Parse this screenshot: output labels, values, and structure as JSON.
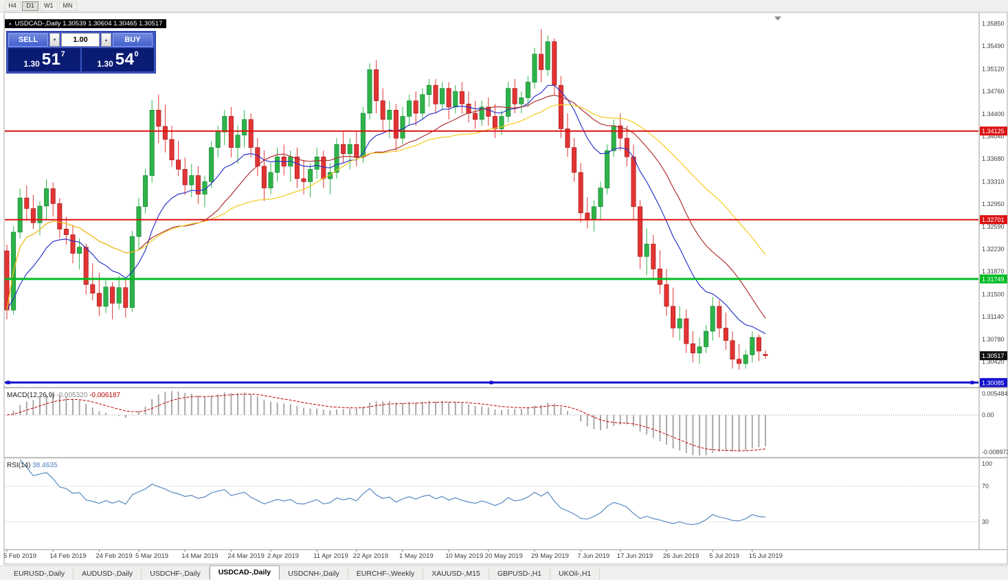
{
  "toolbar": {
    "timeframes": [
      {
        "label": "H4",
        "active": false
      },
      {
        "label": "D1",
        "active": true
      },
      {
        "label": "W1",
        "active": false
      },
      {
        "label": "MN",
        "active": false
      }
    ]
  },
  "chart_header": {
    "symbol_line": "USDCAD-,Daily  1.30539 1.30604 1.30465 1.30517"
  },
  "icons": {
    "one_click_toggle": "▴",
    "volume_up": "▴",
    "volume_down": "▾",
    "shift_marker": "▼"
  },
  "trade_panel": {
    "sell_label": "SELL",
    "buy_label": "BUY",
    "volume": "1.00",
    "sell_price_big": "1.30",
    "sell_price_pips": "51",
    "sell_price_sup": "7",
    "buy_price_big": "1.30",
    "buy_price_pips": "54",
    "buy_price_sup": "0"
  },
  "tabs": [
    {
      "label": "EURUSD-,Daily",
      "active": false
    },
    {
      "label": "AUDUSD-,Daily",
      "active": false
    },
    {
      "label": "USDCHF-,Daily",
      "active": false
    },
    {
      "label": "USDCAD-,Daily",
      "active": true
    },
    {
      "label": "USDCNH-,Daily",
      "active": false
    },
    {
      "label": "EURCHF-,Weekly",
      "active": false
    },
    {
      "label": "XAUUSD-,M15",
      "active": false
    },
    {
      "label": "GBPUSD-,H1",
      "active": false
    },
    {
      "label": "UKOil-,H1",
      "active": false
    }
  ],
  "chart_data": {
    "type": "candlestick",
    "symbol": "USDCAD-",
    "timeframe": "Daily",
    "ohlc_title": {
      "open": "1.30539",
      "high": "1.30604",
      "low": "1.30465",
      "close": "1.30517"
    },
    "price_range": [
      1.3005,
      1.3592
    ],
    "colors": {
      "up": "#2eb34a",
      "up_border": "#0e7a2a",
      "down": "#e23434",
      "down_border": "#9c1212",
      "ma_fast": "#2a35c8",
      "ma_medium": "#b03030",
      "ma_slow": "#f2cc18",
      "macd_hist": "#a9a9a9",
      "macd_signal": "#c00000",
      "rsi_line": "#4a7ebb"
    },
    "y_ticks": [
      "1.35850",
      "1.35490",
      "1.35120",
      "1.34760",
      "1.34400",
      "1.34040",
      "1.33680",
      "1.33310",
      "1.32950",
      "1.32590",
      "1.32230",
      "1.31870",
      "1.31500",
      "1.31140",
      "1.30780",
      "1.30420"
    ],
    "current_price": {
      "price": 1.30517,
      "label": "1.30517",
      "color": "#111111"
    },
    "hlines": [
      {
        "price": 1.34125,
        "label": "1.34125",
        "color": "#dd1111",
        "width": 2,
        "selected": false
      },
      {
        "price": 1.32701,
        "label": "1.32701",
        "color": "#dd1111",
        "width": 2,
        "selected": false
      },
      {
        "price": 1.31749,
        "label": "1.31749",
        "color": "#00bb22",
        "width": 3,
        "selected": false
      },
      {
        "price": 1.30085,
        "label": "1.30085",
        "color": "#1111cc",
        "width": 3,
        "selected": true
      }
    ],
    "ma_lines": [
      {
        "name": "fast",
        "method": "ema",
        "period": 13,
        "color": "#2a35c8"
      },
      {
        "name": "medium",
        "method": "sma",
        "period": 21,
        "color": "#b03030"
      },
      {
        "name": "slow",
        "method": "sma",
        "period": 34,
        "color": "#f2cc18"
      }
    ],
    "macd": {
      "label": "MACD(12,26,9)",
      "value": "-0.005320",
      "signal_value": "-0.006187",
      "params": [
        12,
        26,
        9
      ],
      "range": [
        -0.008973,
        0.005484
      ],
      "axis_labels": [
        "0.005484",
        "0.00",
        "-0.008973"
      ]
    },
    "rsi": {
      "label": "RSI(14)",
      "value": "38.4635",
      "period": 14,
      "range": [
        0,
        100
      ],
      "levels": [
        70,
        30
      ],
      "axis_labels": [
        "100",
        "70",
        "30"
      ]
    },
    "date_ticks": [
      {
        "t": "5 Feb 2019",
        "i": 0
      },
      {
        "t": "14 Feb 2019",
        "i": 7
      },
      {
        "t": "24 Feb 2019",
        "i": 14
      },
      {
        "t": "5 Mar 2019",
        "i": 20
      },
      {
        "t": "14 Mar 2019",
        "i": 27
      },
      {
        "t": "24 Mar 2019",
        "i": 34
      },
      {
        "t": "2 Apr 2019",
        "i": 40
      },
      {
        "t": "11 Apr 2019",
        "i": 47
      },
      {
        "t": "22 Apr 2019",
        "i": 53
      },
      {
        "t": "1 May 2019",
        "i": 60
      },
      {
        "t": "10 May 2019",
        "i": 67
      },
      {
        "t": "20 May 2019",
        "i": 73
      },
      {
        "t": "29 May 2019",
        "i": 80
      },
      {
        "t": "7 Jun 2019",
        "i": 87
      },
      {
        "t": "17 Jun 2019",
        "i": 93
      },
      {
        "t": "26 Jun 2019",
        "i": 100
      },
      {
        "t": "5 Jul 2019",
        "i": 107
      },
      {
        "t": "15 Jul 2019",
        "i": 113
      }
    ],
    "candles": [
      [
        "2019-02-05",
        1.322,
        1.323,
        1.311,
        1.3125
      ],
      [
        "2019-02-06",
        1.3125,
        1.326,
        1.3118,
        1.325
      ],
      [
        "2019-02-07",
        1.325,
        1.332,
        1.324,
        1.3305
      ],
      [
        "2019-02-08",
        1.3305,
        1.3325,
        1.3268,
        1.3288
      ],
      [
        "2019-02-11",
        1.3288,
        1.331,
        1.3255,
        1.3265
      ],
      [
        "2019-02-12",
        1.3265,
        1.33,
        1.3245,
        1.3292
      ],
      [
        "2019-02-13",
        1.3292,
        1.3335,
        1.327,
        1.332
      ],
      [
        "2019-02-14",
        1.332,
        1.333,
        1.3275,
        1.3296
      ],
      [
        "2019-02-15",
        1.3296,
        1.3305,
        1.324,
        1.3255
      ],
      [
        "2019-02-18",
        1.3255,
        1.3275,
        1.323,
        1.3246
      ],
      [
        "2019-02-19",
        1.3246,
        1.3262,
        1.32,
        1.3216
      ],
      [
        "2019-02-20",
        1.3216,
        1.324,
        1.319,
        1.3226
      ],
      [
        "2019-02-21",
        1.3226,
        1.3232,
        1.315,
        1.3166
      ],
      [
        "2019-02-22",
        1.3166,
        1.32,
        1.314,
        1.3152
      ],
      [
        "2019-02-25",
        1.3152,
        1.3185,
        1.3115,
        1.3131
      ],
      [
        "2019-02-26",
        1.3131,
        1.3176,
        1.312,
        1.3162
      ],
      [
        "2019-02-27",
        1.3162,
        1.317,
        1.311,
        1.3136
      ],
      [
        "2019-02-28",
        1.3136,
        1.318,
        1.3126,
        1.3161
      ],
      [
        "2019-03-01",
        1.3161,
        1.3176,
        1.3113,
        1.3129
      ],
      [
        "2019-03-04",
        1.3129,
        1.3252,
        1.3122,
        1.3243
      ],
      [
        "2019-03-05",
        1.3243,
        1.3305,
        1.3222,
        1.3291
      ],
      [
        "2019-03-06",
        1.3291,
        1.3352,
        1.328,
        1.3341
      ],
      [
        "2019-03-07",
        1.3341,
        1.3462,
        1.333,
        1.3446
      ],
      [
        "2019-03-08",
        1.3446,
        1.3471,
        1.3393,
        1.342
      ],
      [
        "2019-03-11",
        1.342,
        1.3455,
        1.3378,
        1.3399
      ],
      [
        "2019-03-12",
        1.3399,
        1.3421,
        1.3355,
        1.3366
      ],
      [
        "2019-03-13",
        1.3366,
        1.3396,
        1.334,
        1.3351
      ],
      [
        "2019-03-14",
        1.3351,
        1.337,
        1.331,
        1.3326
      ],
      [
        "2019-03-15",
        1.3326,
        1.336,
        1.3306,
        1.3341
      ],
      [
        "2019-03-18",
        1.3341,
        1.3356,
        1.3295,
        1.3311
      ],
      [
        "2019-03-19",
        1.3311,
        1.3341,
        1.329,
        1.3331
      ],
      [
        "2019-03-20",
        1.3331,
        1.3396,
        1.3321,
        1.3386
      ],
      [
        "2019-03-21",
        1.3386,
        1.3421,
        1.337,
        1.3411
      ],
      [
        "2019-03-22",
        1.3411,
        1.3446,
        1.339,
        1.3436
      ],
      [
        "2019-03-25",
        1.3436,
        1.3451,
        1.337,
        1.3386
      ],
      [
        "2019-03-26",
        1.3386,
        1.3421,
        1.336,
        1.3406
      ],
      [
        "2019-03-27",
        1.3406,
        1.3446,
        1.3386,
        1.3431
      ],
      [
        "2019-03-28",
        1.3431,
        1.3441,
        1.337,
        1.3386
      ],
      [
        "2019-03-29",
        1.3386,
        1.3401,
        1.334,
        1.3356
      ],
      [
        "2019-04-01",
        1.3356,
        1.3381,
        1.33,
        1.3321
      ],
      [
        "2019-04-02",
        1.3321,
        1.3361,
        1.3311,
        1.3346
      ],
      [
        "2019-04-03",
        1.3346,
        1.3386,
        1.3331,
        1.3371
      ],
      [
        "2019-04-04",
        1.3371,
        1.3391,
        1.3341,
        1.3356
      ],
      [
        "2019-04-05",
        1.3356,
        1.3381,
        1.3331,
        1.3371
      ],
      [
        "2019-04-08",
        1.3371,
        1.3386,
        1.3321,
        1.3336
      ],
      [
        "2019-04-09",
        1.3336,
        1.3366,
        1.3311,
        1.3331
      ],
      [
        "2019-04-10",
        1.3331,
        1.3361,
        1.3306,
        1.3351
      ],
      [
        "2019-04-11",
        1.3351,
        1.3386,
        1.3336,
        1.3371
      ],
      [
        "2019-04-12",
        1.3371,
        1.3381,
        1.3321,
        1.3336
      ],
      [
        "2019-04-15",
        1.3336,
        1.3361,
        1.3311,
        1.3346
      ],
      [
        "2019-04-16",
        1.3346,
        1.3401,
        1.3336,
        1.3391
      ],
      [
        "2019-04-17",
        1.3391,
        1.3411,
        1.3361,
        1.3376
      ],
      [
        "2019-04-18",
        1.3376,
        1.3401,
        1.3351,
        1.3391
      ],
      [
        "2019-04-22",
        1.3391,
        1.3411,
        1.3356,
        1.3371
      ],
      [
        "2019-04-23",
        1.3371,
        1.3451,
        1.3361,
        1.3441
      ],
      [
        "2019-04-24",
        1.3441,
        1.3521,
        1.3431,
        1.3511
      ],
      [
        "2019-04-25",
        1.3511,
        1.3526,
        1.3441,
        1.3461
      ],
      [
        "2019-04-26",
        1.3461,
        1.3481,
        1.3411,
        1.3431
      ],
      [
        "2019-04-29",
        1.3431,
        1.3461,
        1.3401,
        1.3446
      ],
      [
        "2019-04-30",
        1.3446,
        1.3456,
        1.3381,
        1.3401
      ],
      [
        "2019-05-01",
        1.3401,
        1.3451,
        1.3391,
        1.3436
      ],
      [
        "2019-05-02",
        1.3436,
        1.3471,
        1.3421,
        1.3461
      ],
      [
        "2019-05-03",
        1.3461,
        1.3476,
        1.3421,
        1.3441
      ],
      [
        "2019-05-06",
        1.3441,
        1.3481,
        1.3431,
        1.3471
      ],
      [
        "2019-05-07",
        1.3471,
        1.3496,
        1.3451,
        1.3486
      ],
      [
        "2019-05-08",
        1.3486,
        1.3496,
        1.3441,
        1.3456
      ],
      [
        "2019-05-09",
        1.3456,
        1.3491,
        1.3446,
        1.3481
      ],
      [
        "2019-05-10",
        1.3481,
        1.3491,
        1.3431,
        1.3451
      ],
      [
        "2019-05-13",
        1.3451,
        1.3486,
        1.3441,
        1.3476
      ],
      [
        "2019-05-14",
        1.3476,
        1.3491,
        1.3441,
        1.3456
      ],
      [
        "2019-05-15",
        1.3456,
        1.3476,
        1.3426,
        1.3441
      ],
      [
        "2019-05-16",
        1.3441,
        1.3461,
        1.3416,
        1.3431
      ],
      [
        "2019-05-17",
        1.3431,
        1.3461,
        1.3421,
        1.3451
      ],
      [
        "2019-05-20",
        1.3451,
        1.3466,
        1.3421,
        1.3436
      ],
      [
        "2019-05-21",
        1.3436,
        1.3456,
        1.3401,
        1.3416
      ],
      [
        "2019-05-22",
        1.3416,
        1.3446,
        1.3406,
        1.3436
      ],
      [
        "2019-05-23",
        1.3436,
        1.3491,
        1.3426,
        1.3481
      ],
      [
        "2019-05-24",
        1.3481,
        1.3496,
        1.3441,
        1.3456
      ],
      [
        "2019-05-27",
        1.3456,
        1.3476,
        1.3441,
        1.3466
      ],
      [
        "2019-05-28",
        1.3466,
        1.3501,
        1.3451,
        1.3491
      ],
      [
        "2019-05-29",
        1.3491,
        1.3546,
        1.3481,
        1.3536
      ],
      [
        "2019-05-30",
        1.3536,
        1.3576,
        1.3491,
        1.3511
      ],
      [
        "2019-05-31",
        1.3511,
        1.3566,
        1.3501,
        1.3556
      ],
      [
        "2019-06-03",
        1.3556,
        1.3561,
        1.3471,
        1.3486
      ],
      [
        "2019-06-04",
        1.3486,
        1.3501,
        1.3401,
        1.3416
      ],
      [
        "2019-06-05",
        1.3416,
        1.3441,
        1.3371,
        1.3386
      ],
      [
        "2019-06-06",
        1.3386,
        1.3401,
        1.3331,
        1.3346
      ],
      [
        "2019-06-07",
        1.3346,
        1.3361,
        1.3266,
        1.3281
      ],
      [
        "2019-06-10",
        1.3281,
        1.3306,
        1.3256,
        1.3271
      ],
      [
        "2019-06-11",
        1.3271,
        1.3301,
        1.3251,
        1.3291
      ],
      [
        "2019-06-12",
        1.3291,
        1.3331,
        1.3271,
        1.3321
      ],
      [
        "2019-06-13",
        1.3321,
        1.3391,
        1.3311,
        1.3381
      ],
      [
        "2019-06-14",
        1.3381,
        1.3431,
        1.3371,
        1.3421
      ],
      [
        "2019-06-17",
        1.3421,
        1.3441,
        1.3381,
        1.3401
      ],
      [
        "2019-06-18",
        1.3401,
        1.3421,
        1.3356,
        1.3371
      ],
      [
        "2019-06-19",
        1.3371,
        1.3391,
        1.3271,
        1.3291
      ],
      [
        "2019-06-20",
        1.3291,
        1.3301,
        1.3191,
        1.3211
      ],
      [
        "2019-06-21",
        1.3211,
        1.3256,
        1.3181,
        1.3231
      ],
      [
        "2019-06-24",
        1.3231,
        1.3246,
        1.3176,
        1.3191
      ],
      [
        "2019-06-25",
        1.3191,
        1.3221,
        1.3151,
        1.3166
      ],
      [
        "2019-06-26",
        1.3166,
        1.3191,
        1.3116,
        1.3131
      ],
      [
        "2019-06-27",
        1.3131,
        1.3161,
        1.3081,
        1.3096
      ],
      [
        "2019-06-28",
        1.3096,
        1.3131,
        1.3076,
        1.3111
      ],
      [
        "2019-07-01",
        1.3111,
        1.3126,
        1.3056,
        1.3071
      ],
      [
        "2019-07-02",
        1.3071,
        1.3091,
        1.3041,
        1.3056
      ],
      [
        "2019-07-03",
        1.3056,
        1.3081,
        1.3039,
        1.3066
      ],
      [
        "2019-07-04",
        1.3066,
        1.3101,
        1.3056,
        1.3091
      ],
      [
        "2019-07-05",
        1.3091,
        1.3146,
        1.3076,
        1.3131
      ],
      [
        "2019-07-08",
        1.3131,
        1.3141,
        1.3081,
        1.3096
      ],
      [
        "2019-07-09",
        1.3096,
        1.3121,
        1.3061,
        1.3076
      ],
      [
        "2019-07-10",
        1.3076,
        1.3091,
        1.3031,
        1.3046
      ],
      [
        "2019-07-11",
        1.3046,
        1.3071,
        1.3029,
        1.3039
      ],
      [
        "2019-07-12",
        1.3039,
        1.3061,
        1.3031,
        1.3053
      ],
      [
        "2019-07-15",
        1.3053,
        1.3091,
        1.3041,
        1.3081
      ],
      [
        "2019-07-16",
        1.3081,
        1.3086,
        1.3043,
        1.3059
      ],
      [
        "2019-07-17",
        1.30539,
        1.30604,
        1.30465,
        1.30517
      ]
    ]
  }
}
